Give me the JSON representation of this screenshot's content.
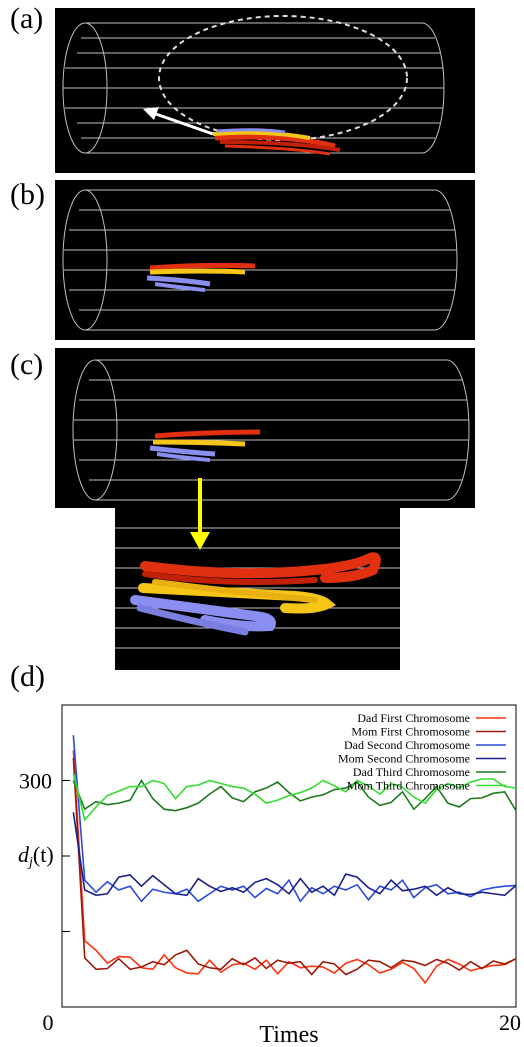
{
  "panels": {
    "a": {
      "label": "(a)"
    },
    "b": {
      "label": "(b)"
    },
    "c": {
      "label": "(c)"
    },
    "d": {
      "label": "(d)"
    }
  },
  "colors": {
    "red": "#e03010",
    "yellow": "#f5c518",
    "violet": "#8a8ef0",
    "arrow_yellow": "#ffff00"
  },
  "chart_data": {
    "type": "line",
    "title": "",
    "xlabel": "Times",
    "ylabel": "d_j(t)",
    "ylabel_main": "d",
    "ylabel_sub": "j",
    "ylabel_tail": "(t)",
    "xlim": [
      0,
      20
    ],
    "ylim": [
      0,
      400
    ],
    "x_ticks": [
      {
        "value": 0,
        "label": "0"
      },
      {
        "value": 20,
        "label": "20"
      }
    ],
    "y_ticks": [
      {
        "value": 300,
        "label": "300"
      }
    ],
    "legend_position": "top-right",
    "series": [
      {
        "name": "Dad First Chromosome",
        "color": "#ff3311",
        "x": [
          0.5,
          1,
          1.5,
          2,
          2.5,
          3,
          3.5,
          4,
          4.5,
          5,
          5.5,
          6,
          6.5,
          7,
          7.5,
          8,
          8.5,
          9,
          9.5,
          10,
          10.5,
          11,
          11.5,
          12,
          12.5,
          13,
          13.5,
          14,
          14.5,
          15,
          15.5,
          16,
          16.5,
          17,
          17.5,
          18,
          18.5,
          19,
          19.5,
          20
        ],
        "y": [
          340,
          88,
          75,
          58,
          67,
          66,
          52,
          50,
          69,
          52,
          45,
          44,
          62,
          46,
          56,
          58,
          50,
          62,
          44,
          60,
          52,
          54,
          53,
          45,
          58,
          63,
          56,
          45,
          50,
          59,
          51,
          32,
          54,
          63,
          57,
          48,
          52,
          55,
          56,
          64
        ]
      },
      {
        "name": "Mom First Chromosome",
        "color": "#9b1a0a",
        "x": [
          0.5,
          1,
          1.5,
          2,
          2.5,
          3,
          3.5,
          4,
          4.5,
          5,
          5.5,
          6,
          6.5,
          7,
          7.5,
          8,
          8.5,
          9,
          9.5,
          10,
          10.5,
          11,
          11.5,
          12,
          12.5,
          13,
          13.5,
          14,
          14.5,
          15,
          15.5,
          16,
          16.5,
          17,
          17.5,
          18,
          18.5,
          19,
          19.5,
          20
        ],
        "y": [
          330,
          65,
          50,
          51,
          64,
          50,
          53,
          60,
          56,
          69,
          75,
          57,
          52,
          50,
          64,
          56,
          65,
          51,
          62,
          58,
          60,
          43,
          60,
          57,
          43,
          50,
          62,
          60,
          52,
          62,
          60,
          55,
          63,
          58,
          49,
          60,
          51,
          61,
          57,
          64
        ]
      },
      {
        "name": "Dad Second Chromosome",
        "color": "#2a4bdc",
        "x": [
          0.5,
          1,
          1.5,
          2,
          2.5,
          3,
          3.5,
          4,
          4.5,
          5,
          5.5,
          6,
          6.5,
          7,
          7.5,
          8,
          8.5,
          9,
          9.5,
          10,
          10.5,
          11,
          11.5,
          12,
          12.5,
          13,
          13.5,
          14,
          14.5,
          15,
          15.5,
          16,
          16.5,
          17,
          17.5,
          18,
          18.5,
          19,
          19.5,
          20
        ],
        "y": [
          360,
          168,
          152,
          166,
          155,
          160,
          140,
          156,
          152,
          150,
          156,
          140,
          150,
          160,
          155,
          160,
          145,
          157,
          150,
          168,
          140,
          158,
          150,
          160,
          155,
          162,
          142,
          160,
          155,
          168,
          145,
          158,
          162,
          150,
          152,
          146,
          155,
          158,
          160,
          161
        ]
      },
      {
        "name": "Mom Second Chromosome",
        "color": "#1a1f8a",
        "x": [
          0.5,
          1,
          1.5,
          2,
          2.5,
          3,
          3.5,
          4,
          4.5,
          5,
          5.5,
          6,
          6.5,
          7,
          7.5,
          8,
          8.5,
          9,
          9.5,
          10,
          10.5,
          11,
          11.5,
          12,
          12.5,
          13,
          13.5,
          14,
          14.5,
          15,
          15.5,
          16,
          16.5,
          17,
          17.5,
          18,
          18.5,
          19,
          19.5,
          20
        ],
        "y": [
          258,
          155,
          148,
          150,
          172,
          175,
          160,
          174,
          162,
          150,
          148,
          170,
          160,
          153,
          158,
          152,
          165,
          170,
          162,
          150,
          170,
          152,
          160,
          148,
          176,
          172,
          158,
          150,
          168,
          154,
          156,
          160,
          148,
          158,
          150,
          149,
          152,
          150,
          148,
          161
        ]
      },
      {
        "name": "Dad Third Chromosome",
        "color": "#1e7a1e",
        "x": [
          0.5,
          1,
          1.5,
          2,
          2.5,
          3,
          3.5,
          4,
          4.5,
          5,
          5.5,
          6,
          6.5,
          7,
          7.5,
          8,
          8.5,
          9,
          9.5,
          10,
          10.5,
          11,
          11.5,
          12,
          12.5,
          13,
          13.5,
          14,
          14.5,
          15,
          15.5,
          16,
          16.5,
          17,
          17.5,
          18,
          18.5,
          19,
          19.5,
          20
        ],
        "y": [
          300,
          262,
          272,
          268,
          270,
          274,
          300,
          276,
          262,
          260,
          264,
          270,
          282,
          292,
          277,
          272,
          285,
          290,
          298,
          284,
          273,
          278,
          281,
          288,
          290,
          298,
          278,
          267,
          271,
          285,
          262,
          276,
          292,
          270,
          265,
          276,
          277,
          283,
          285,
          260
        ]
      },
      {
        "name": "Mom Third Chromosome",
        "color": "#33dd33",
        "x": [
          0.5,
          1,
          1.5,
          2,
          2.5,
          3,
          3.5,
          4,
          4.5,
          5,
          5.5,
          6,
          6.5,
          7,
          7.5,
          8,
          8.5,
          9,
          9.5,
          10,
          10.5,
          11,
          11.5,
          12,
          12.5,
          13,
          13.5,
          14,
          14.5,
          15,
          15.5,
          16,
          16.5,
          17,
          17.5,
          18,
          18.5,
          19,
          19.5,
          20
        ],
        "y": [
          310,
          248,
          265,
          280,
          286,
          292,
          292,
          300,
          296,
          276,
          292,
          294,
          300,
          296,
          292,
          290,
          282,
          270,
          274,
          280,
          284,
          290,
          300,
          293,
          285,
          300,
          293,
          282,
          296,
          291,
          278,
          270,
          288,
          296,
          290,
          298,
          302,
          302,
          292,
          290
        ]
      }
    ]
  }
}
